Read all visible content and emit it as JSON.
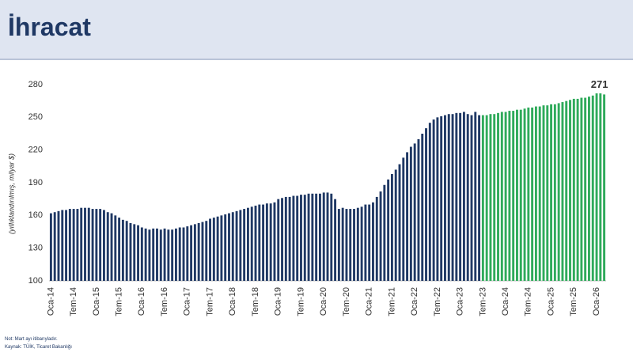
{
  "chart_data": {
    "type": "bar",
    "title": "İhracat",
    "y_label": "(yıllıklandırılmış, milyar $)",
    "notes": [
      "Not: Mart ayı itibarıyladır.",
      "Kaynak: TÜİK, Ticaret Bakanlığı"
    ],
    "ylim": [
      100,
      280
    ],
    "yticks": [
      100,
      130,
      160,
      190,
      220,
      250,
      280
    ],
    "categories": [
      "Oca-14",
      null,
      null,
      null,
      null,
      null,
      "Tem-14",
      null,
      null,
      null,
      null,
      null,
      "Oca-15",
      null,
      null,
      null,
      null,
      null,
      "Tem-15",
      null,
      null,
      null,
      null,
      null,
      "Oca-16",
      null,
      null,
      null,
      null,
      null,
      "Tem-16",
      null,
      null,
      null,
      null,
      null,
      "Oca-17",
      null,
      null,
      null,
      null,
      null,
      "Tem-17",
      null,
      null,
      null,
      null,
      null,
      "Oca-18",
      null,
      null,
      null,
      null,
      null,
      "Tem-18",
      null,
      null,
      null,
      null,
      null,
      "Oca-19",
      null,
      null,
      null,
      null,
      null,
      "Tem-19",
      null,
      null,
      null,
      null,
      null,
      "Oca-20",
      null,
      null,
      null,
      null,
      null,
      "Tem-20",
      null,
      null,
      null,
      null,
      null,
      "Oca-21",
      null,
      null,
      null,
      null,
      null,
      "Tem-21",
      null,
      null,
      null,
      null,
      null,
      "Oca-22",
      null,
      null,
      null,
      null,
      null,
      "Tem-22",
      null,
      null,
      null,
      null,
      null,
      "Oca-23",
      null,
      null,
      null,
      null,
      null,
      "Tem-23",
      null,
      null,
      null,
      null,
      null,
      "Oca-24",
      null,
      null,
      null,
      null,
      null,
      "Tem-24",
      null,
      null,
      null,
      null,
      null,
      "Oca-25",
      null,
      null,
      null,
      null,
      null,
      "Tem-25",
      null,
      null,
      null,
      null,
      null,
      "Oca-26",
      null,
      null
    ],
    "series": [
      {
        "color": "#1f3864",
        "values": [
          162,
          163,
          164,
          165,
          165,
          166,
          166,
          166,
          167,
          167,
          167,
          166,
          166,
          166,
          165,
          163,
          162,
          160,
          158,
          156,
          155,
          153,
          152,
          151,
          149,
          148,
          147,
          148,
          148,
          147,
          148,
          147,
          147,
          148,
          149,
          149,
          150,
          151,
          152,
          153,
          154,
          155,
          157,
          158,
          159,
          160,
          161,
          162,
          163,
          164,
          165,
          166,
          167,
          168,
          169,
          170,
          170,
          171,
          171,
          172,
          175,
          176,
          177,
          177,
          178,
          178,
          179,
          179,
          180,
          180,
          180,
          180,
          181,
          181,
          180,
          175,
          166,
          167,
          166,
          166,
          166,
          167,
          168,
          170,
          170,
          172,
          177,
          182,
          188,
          193,
          198,
          202,
          207,
          213,
          218,
          223,
          226,
          230,
          235,
          240,
          245,
          248,
          250,
          251,
          252,
          253,
          253,
          254,
          254,
          255,
          253,
          252,
          255,
          252,
          null,
          null,
          null,
          null,
          null,
          null,
          null,
          null,
          null,
          null,
          null,
          null,
          null,
          null,
          null,
          null,
          null,
          null,
          null,
          null,
          null,
          null,
          null,
          null,
          null,
          null,
          null,
          null,
          null,
          null,
          null,
          null,
          null
        ]
      },
      {
        "color": "#2eaa5a",
        "values": [
          null,
          null,
          null,
          null,
          null,
          null,
          null,
          null,
          null,
          null,
          null,
          null,
          null,
          null,
          null,
          null,
          null,
          null,
          null,
          null,
          null,
          null,
          null,
          null,
          null,
          null,
          null,
          null,
          null,
          null,
          null,
          null,
          null,
          null,
          null,
          null,
          null,
          null,
          null,
          null,
          null,
          null,
          null,
          null,
          null,
          null,
          null,
          null,
          null,
          null,
          null,
          null,
          null,
          null,
          null,
          null,
          null,
          null,
          null,
          null,
          null,
          null,
          null,
          null,
          null,
          null,
          null,
          null,
          null,
          null,
          null,
          null,
          null,
          null,
          null,
          null,
          null,
          null,
          null,
          null,
          null,
          null,
          null,
          null,
          null,
          null,
          null,
          null,
          null,
          null,
          null,
          null,
          null,
          null,
          null,
          null,
          null,
          null,
          null,
          null,
          null,
          null,
          null,
          null,
          null,
          null,
          null,
          null,
          null,
          null,
          null,
          null,
          null,
          null,
          252,
          252,
          253,
          253,
          254,
          255,
          255,
          256,
          256,
          257,
          257,
          258,
          259,
          259,
          260,
          260,
          261,
          261,
          262,
          262,
          263,
          264,
          265,
          266,
          267,
          267,
          268,
          268,
          269,
          270,
          272,
          272,
          271
        ]
      }
    ],
    "label_point": "chart_data.series.1.values.146"
  }
}
